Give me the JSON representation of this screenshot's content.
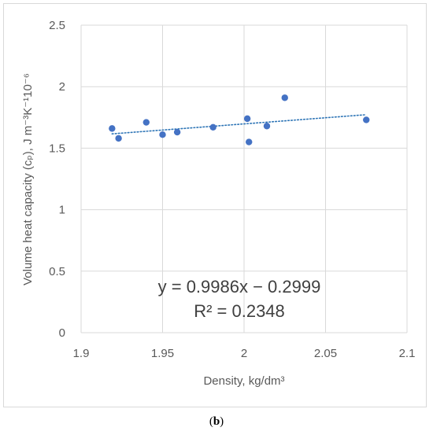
{
  "chart_data": {
    "type": "scatter",
    "xlabel": "Density, kg/dm³",
    "ylabel": "Volume heat capacity (cₚ), J m⁻³K⁻¹10⁻⁶",
    "xlim": [
      1.9,
      2.1
    ],
    "ylim": [
      0,
      2.5
    ],
    "xticks": [
      "1.9",
      "1.95",
      "2",
      "2.05",
      "2.1"
    ],
    "yticks": [
      "0",
      "0.5",
      "1",
      "1.5",
      "2",
      "2.5"
    ],
    "grid": true,
    "points": [
      {
        "x": 1.919,
        "y": 1.66
      },
      {
        "x": 1.923,
        "y": 1.58
      },
      {
        "x": 1.94,
        "y": 1.71
      },
      {
        "x": 1.95,
        "y": 1.61
      },
      {
        "x": 1.959,
        "y": 1.63
      },
      {
        "x": 1.981,
        "y": 1.67
      },
      {
        "x": 2.002,
        "y": 1.74
      },
      {
        "x": 2.003,
        "y": 1.55
      },
      {
        "x": 2.014,
        "y": 1.68
      },
      {
        "x": 2.025,
        "y": 1.91
      },
      {
        "x": 2.075,
        "y": 1.73
      }
    ],
    "trendline": {
      "type": "linear",
      "style": "dotted",
      "x_range": [
        1.919,
        2.075
      ],
      "slope": 0.9986,
      "intercept": -0.2999
    },
    "equation_text": "y = 0.9986x − 0.2999",
    "r2_text": "R² = 0.2348",
    "colors": {
      "points": "#4472c4",
      "trendline": "#2e75b6",
      "grid": "#d9d9d9",
      "text": "#595959"
    }
  },
  "caption": {
    "open": "(",
    "label": "b",
    "close": ")"
  }
}
